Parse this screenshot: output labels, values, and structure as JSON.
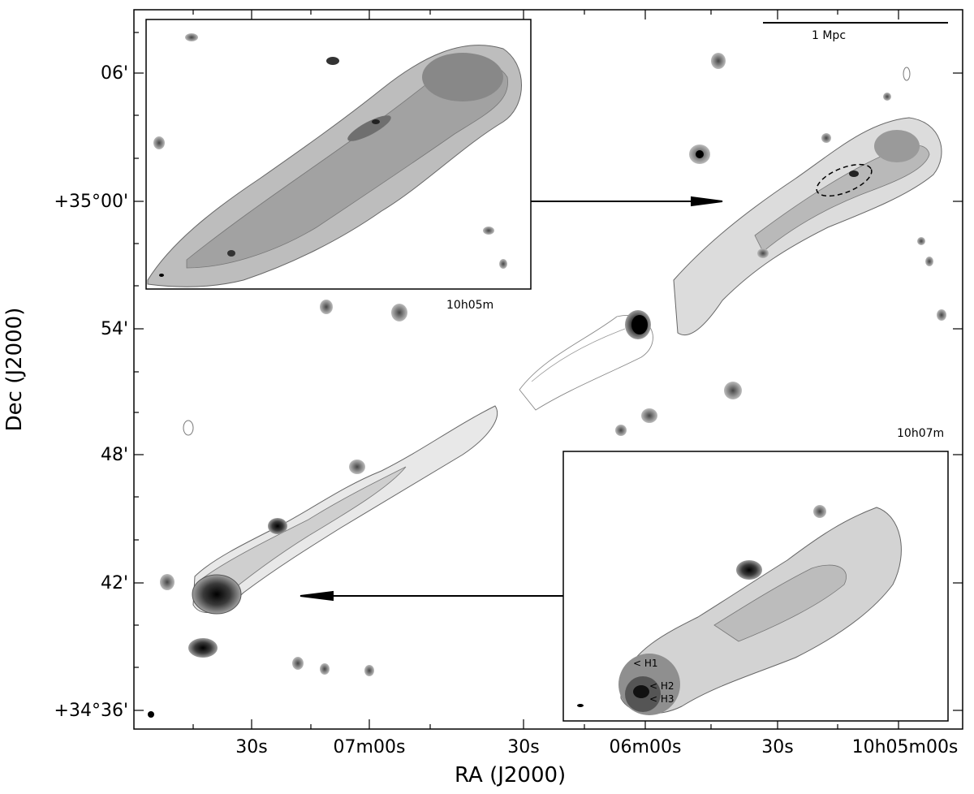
{
  "figure": {
    "x_axis_title": "RA (J2000)",
    "y_axis_title": "Dec (J2000)",
    "x_ticks": [
      "30s",
      "07m00s",
      "30s",
      "06m00s",
      "30s",
      "10h05m00s"
    ],
    "y_ticks": [
      "06'",
      "+35°00'",
      "54'",
      "48'",
      "42'",
      "+34°36'"
    ],
    "scale_bar_label": "1 Mpc",
    "inset_top_label": "10h05m",
    "inset_bottom_label": "10h07m",
    "hotspots": [
      "< H1",
      "< H2",
      "< H3"
    ]
  }
}
